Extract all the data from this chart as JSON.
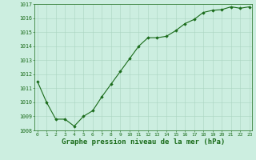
{
  "x": [
    0,
    1,
    2,
    3,
    4,
    5,
    6,
    7,
    8,
    9,
    10,
    11,
    12,
    13,
    14,
    15,
    16,
    17,
    18,
    19,
    20,
    21,
    22,
    23
  ],
  "y": [
    1011.5,
    1010.0,
    1008.8,
    1008.8,
    1008.3,
    1009.0,
    1009.4,
    1010.4,
    1011.3,
    1012.2,
    1013.1,
    1014.0,
    1014.6,
    1014.6,
    1014.7,
    1015.1,
    1015.6,
    1015.9,
    1016.4,
    1016.55,
    1016.6,
    1016.8,
    1016.7,
    1016.8
  ],
  "ylim": [
    1008.0,
    1017.0
  ],
  "yticks": [
    1008,
    1009,
    1010,
    1011,
    1012,
    1013,
    1014,
    1015,
    1016,
    1017
  ],
  "xticks": [
    0,
    1,
    2,
    3,
    4,
    5,
    6,
    7,
    8,
    9,
    10,
    11,
    12,
    13,
    14,
    15,
    16,
    17,
    18,
    19,
    20,
    21,
    22,
    23
  ],
  "line_color": "#1a6b1a",
  "marker_color": "#1a6b1a",
  "bg_color": "#cceee0",
  "grid_color": "#aad4c0",
  "border_color": "#1a6b1a",
  "xlabel": "Graphe pression niveau de la mer (hPa)",
  "xlabel_color": "#1a6b1a",
  "tick_color": "#1a6b1a",
  "xlabel_fontsize": 6.5
}
